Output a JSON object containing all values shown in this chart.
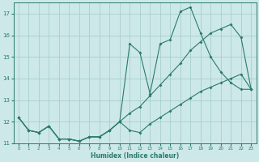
{
  "xlabel": "Humidex (Indice chaleur)",
  "background_color": "#cde8e8",
  "grid_color": "#a8cece",
  "line_color": "#2a7a6e",
  "xlim": [
    -0.5,
    23.5
  ],
  "ylim": [
    11.0,
    17.5
  ],
  "yticks": [
    11,
    12,
    13,
    14,
    15,
    16,
    17
  ],
  "xticks": [
    0,
    1,
    2,
    3,
    4,
    5,
    6,
    7,
    8,
    9,
    10,
    11,
    12,
    13,
    14,
    15,
    16,
    17,
    18,
    19,
    20,
    21,
    22,
    23
  ],
  "line1_x": [
    0,
    1,
    2,
    3,
    4,
    5,
    6,
    7,
    8,
    9,
    10,
    11,
    12,
    13,
    14,
    15,
    16,
    17,
    18,
    19,
    20,
    21,
    22,
    23
  ],
  "line1_y": [
    12.2,
    11.6,
    11.5,
    11.8,
    11.2,
    11.2,
    11.1,
    11.3,
    11.3,
    11.6,
    12.0,
    15.6,
    15.2,
    13.3,
    15.6,
    15.8,
    17.1,
    17.3,
    16.1,
    15.0,
    14.3,
    13.8,
    13.5,
    13.5
  ],
  "line2_x": [
    0,
    1,
    2,
    3,
    4,
    5,
    6,
    7,
    8,
    9,
    10,
    11,
    12,
    13,
    14,
    15,
    16,
    17,
    18,
    19,
    20,
    21,
    22,
    23
  ],
  "line2_y": [
    12.2,
    11.6,
    11.5,
    11.8,
    11.2,
    11.2,
    11.1,
    11.3,
    11.3,
    11.6,
    12.0,
    12.4,
    12.7,
    13.2,
    13.7,
    14.2,
    14.7,
    15.3,
    15.7,
    16.1,
    16.3,
    16.5,
    15.9,
    13.5
  ],
  "line3_x": [
    0,
    1,
    2,
    3,
    4,
    5,
    6,
    7,
    8,
    9,
    10,
    11,
    12,
    13,
    14,
    15,
    16,
    17,
    18,
    19,
    20,
    21,
    22,
    23
  ],
  "line3_y": [
    12.2,
    11.6,
    11.5,
    11.8,
    11.2,
    11.2,
    11.1,
    11.3,
    11.3,
    11.6,
    12.0,
    11.6,
    11.5,
    11.9,
    12.2,
    12.5,
    12.8,
    13.1,
    13.4,
    13.6,
    13.8,
    14.0,
    14.2,
    13.5
  ]
}
